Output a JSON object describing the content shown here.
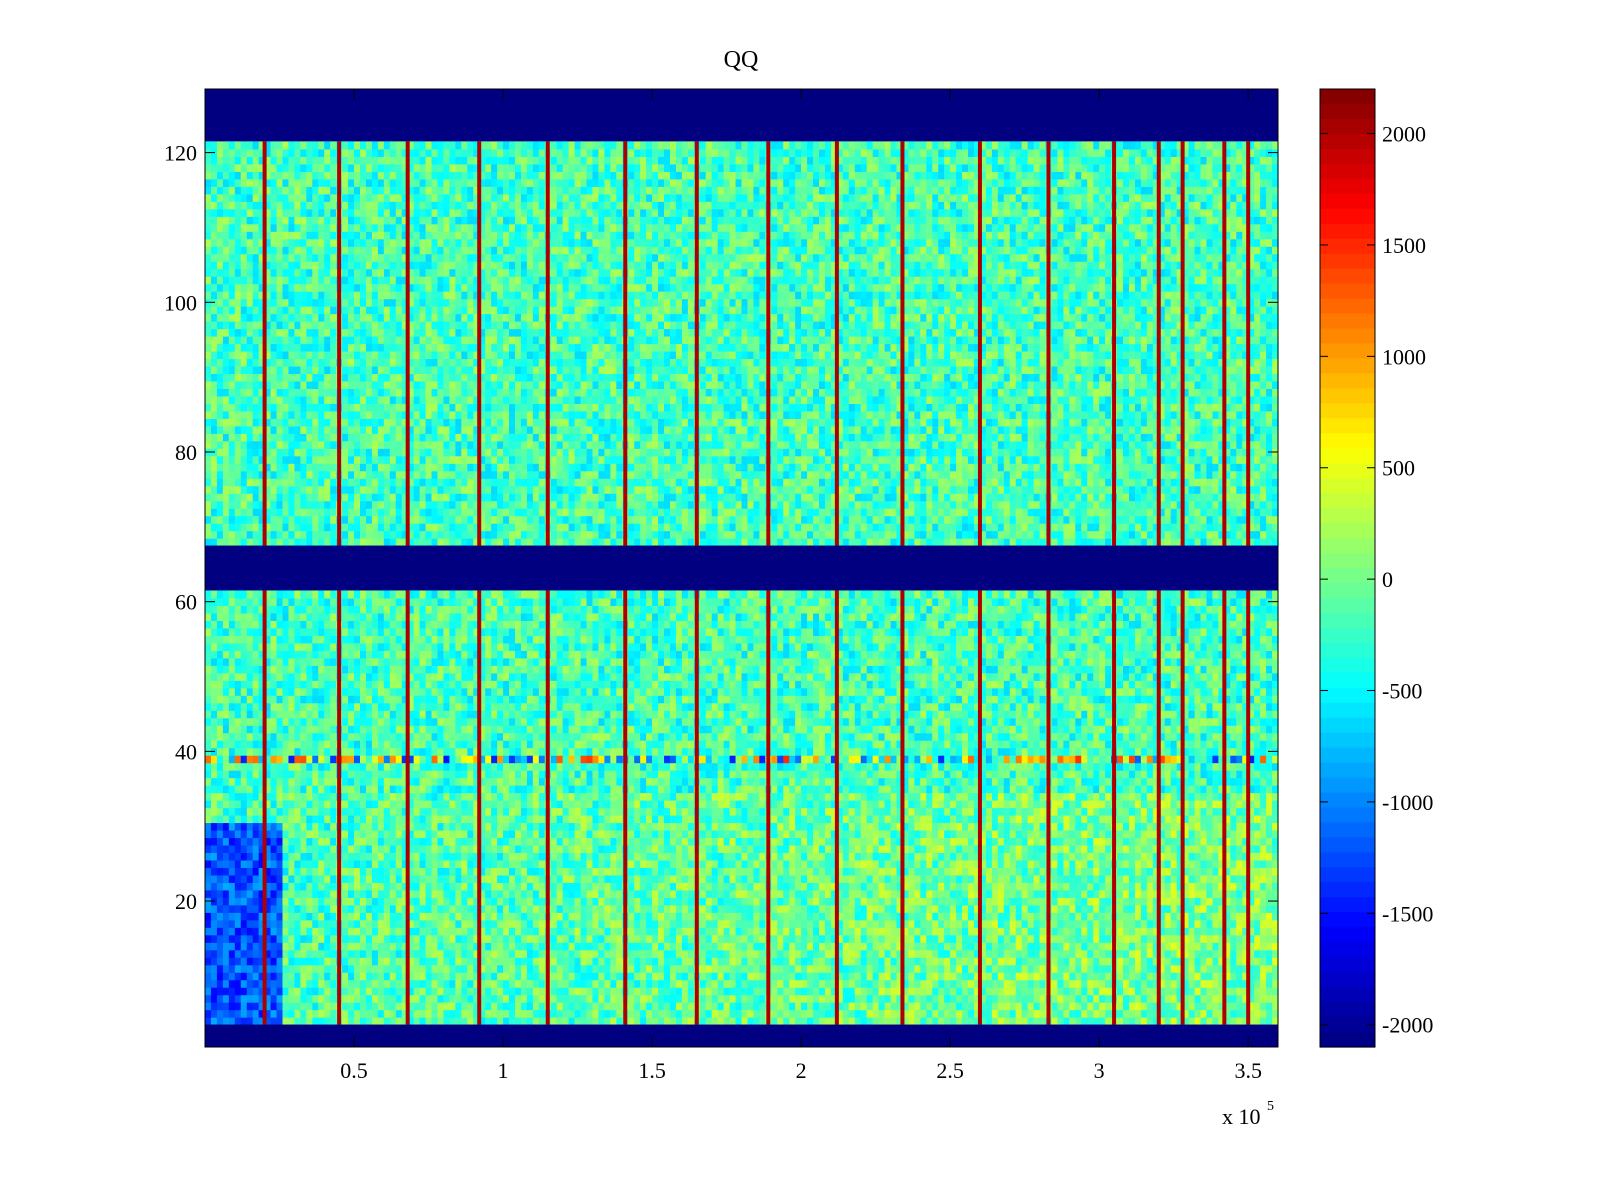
{
  "chart_data": {
    "type": "heatmap",
    "title": "QQ",
    "xlabel": "",
    "ylabel": "",
    "x_exponent_label": "x 10",
    "x_exponent_power": "5",
    "xlim": [
      0,
      3.6
    ],
    "ylim": [
      0.5,
      128.5
    ],
    "x_ticks": [
      0.5,
      1,
      1.5,
      2,
      2.5,
      3,
      3.5
    ],
    "x_tick_labels": [
      "0.5",
      "1",
      "1.5",
      "2",
      "2.5",
      "3",
      "3.5"
    ],
    "y_ticks": [
      20,
      40,
      60,
      80,
      100,
      120
    ],
    "y_tick_labels": [
      "20",
      "40",
      "60",
      "80",
      "100",
      "120"
    ],
    "grid": false,
    "colormap": "jet",
    "clim": [
      -2100,
      2200
    ],
    "colorbar": {
      "ticks": [
        2000,
        1500,
        1000,
        500,
        0,
        -500,
        -1000,
        -1500,
        -2000
      ],
      "tick_labels": [
        "2000",
        "1500",
        "1000",
        "500",
        "0",
        "-500",
        "-1000",
        "-1500",
        "-2000"
      ]
    },
    "masked_row_bands": [
      {
        "from": 0.5,
        "to": 3.5,
        "value": -2100
      },
      {
        "from": 61.5,
        "to": 67.5,
        "value": -2100
      },
      {
        "from": 121.5,
        "to": 128.5,
        "value": -2100
      }
    ],
    "background_level": -200,
    "high_value_columns_x": [
      0.2,
      0.45,
      0.68,
      0.92,
      1.15,
      1.41,
      1.65,
      1.89,
      2.12,
      2.34,
      2.6,
      2.83,
      3.05,
      3.2,
      3.28,
      3.42,
      3.5
    ],
    "high_value_column_level": 2000,
    "anomalous_row": {
      "y": 39,
      "value_range": [
        -1500,
        1500
      ]
    },
    "low_value_region": {
      "x_range": [
        0,
        0.25
      ],
      "y_range": [
        4,
        30
      ],
      "level": -1200
    },
    "colors": {
      "axis": "#000000",
      "background": "#ffffff",
      "masked": "#00008f"
    }
  }
}
